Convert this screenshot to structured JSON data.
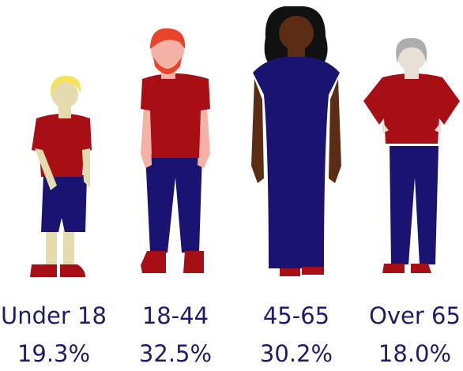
{
  "chart_data": {
    "type": "pictogram",
    "categories": [
      "Under 18",
      "18-44",
      "45-65",
      "Over 65"
    ],
    "values": [
      19.3,
      32.5,
      30.2,
      18.0
    ],
    "value_labels": [
      "19.3%",
      "32.5%",
      "30.2%",
      "18.0%"
    ],
    "color": "#1e1a6e"
  }
}
